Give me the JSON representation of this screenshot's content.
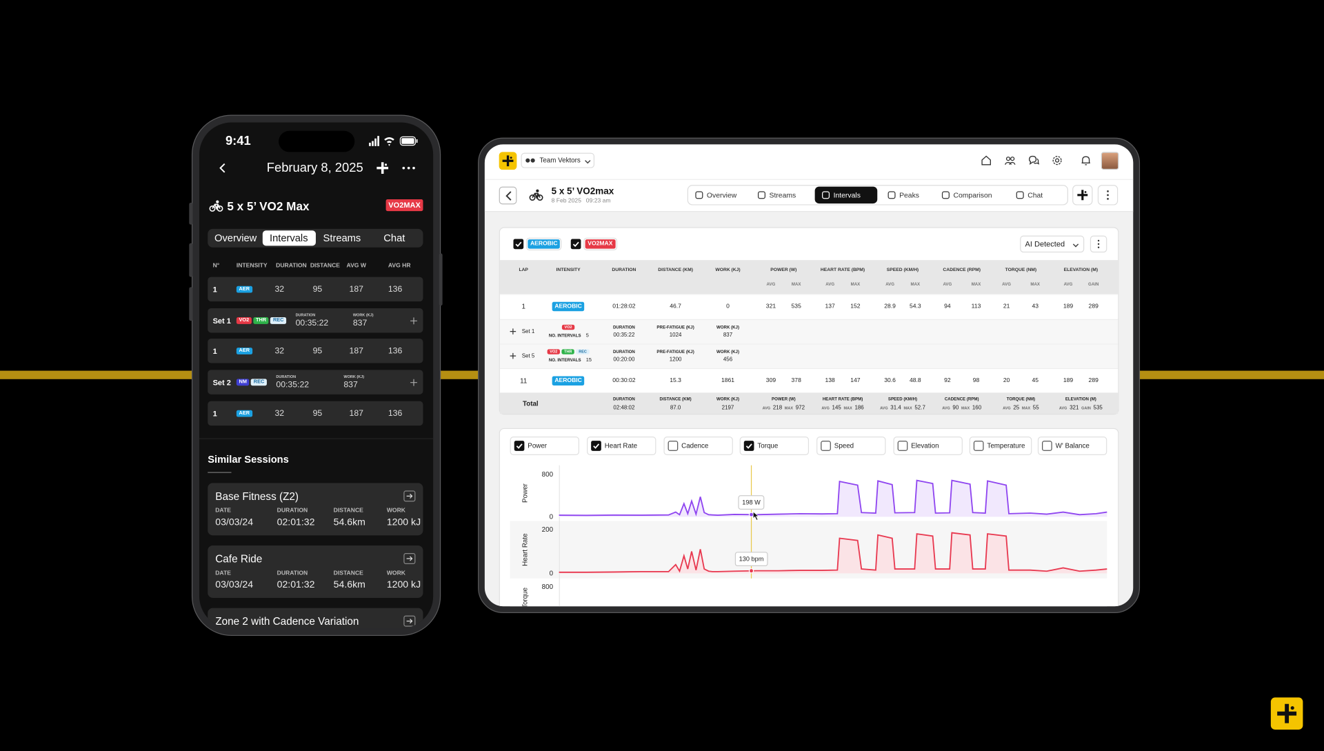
{
  "phone": {
    "status_time": "9:41",
    "date": "February 8, 2025",
    "session": {
      "title": "5 x 5’ VO2 Max",
      "tag": "VO2MAX"
    },
    "tabs": [
      "Overview",
      "Intervals",
      "Streams",
      "Chat"
    ],
    "active_tab": 1,
    "table": {
      "headers": [
        "N°",
        "INTENSITY",
        "DURATION",
        "DISTANCE",
        "AVG W",
        "AVG HR"
      ],
      "rows": [
        {
          "n": 1,
          "tags": [
            {
              "label": "AER",
              "color": "#1ba1e2"
            }
          ],
          "cells": [
            32,
            95,
            187,
            136
          ]
        },
        {
          "n": "Set 1",
          "tags": [
            {
              "label": "VO2",
              "color": "#e63946"
            },
            {
              "label": "THR",
              "color": "#2fb34a"
            },
            {
              "label": "REC",
              "color": "#dff0fa",
              "text_color": "#1f6fa3"
            }
          ],
          "duration_label": "DURATION",
          "duration": "00:35:22",
          "work_label": "WORK (KJ)",
          "work": 837
        },
        {
          "n": 1,
          "tags": [
            {
              "label": "AER",
              "color": "#1ba1e2"
            }
          ],
          "cells": [
            32,
            95,
            187,
            136
          ]
        },
        {
          "n": "Set 2",
          "tags": [
            {
              "label": "NM",
              "color": "#3f3fd1"
            },
            {
              "label": "REC",
              "color": "#dff0fa",
              "text_color": "#1f6fa3"
            }
          ],
          "duration_label": "DURATION",
          "duration": "00:35:22",
          "work_label": "WORK (KJ)",
          "work": 837
        },
        {
          "n": 1,
          "tags": [
            {
              "label": "AER",
              "color": "#1ba1e2"
            }
          ],
          "cells": [
            32,
            95,
            187,
            136
          ]
        }
      ]
    },
    "similar": {
      "title": "Similar Sessions",
      "labels": [
        "DATE",
        "DURATION",
        "DISTANCE",
        "WORK"
      ],
      "sessions": [
        {
          "name": "Base Fitness (Z2)",
          "values": [
            "03/03/24",
            "02:01:32",
            "54.6km",
            "1200 kJ"
          ]
        },
        {
          "name": "Cafe Ride",
          "values": [
            "03/03/24",
            "02:01:32",
            "54.6km",
            "1200 kJ"
          ]
        },
        {
          "name": "Zone 2 with Cadence Variation"
        }
      ]
    }
  },
  "tablet": {
    "team": "Team Vektors",
    "session": {
      "title": "5 x 5’ VO2max",
      "date": "8 Feb 2025",
      "time": "09:23 am"
    },
    "tabs": [
      "Overview",
      "Streams",
      "Intervals",
      "Peaks",
      "Comparison",
      "Chat"
    ],
    "active_tab": 2,
    "filters": [
      {
        "label": "AEROBIC",
        "color": "#1ba1e2"
      },
      {
        "label": "VO2MAX",
        "color": "#e63946"
      }
    ],
    "detection": "AI Detected",
    "laps": {
      "columns": [
        {
          "label": "LAP"
        },
        {
          "label": "INTENSITY"
        },
        {
          "label": "DURATION"
        },
        {
          "label": "DISTANCE (KM)"
        },
        {
          "label": "WORK (KJ)"
        },
        {
          "label": "POWER (W)",
          "sub": [
            "AVG",
            "MAX"
          ]
        },
        {
          "label": "HEART RATE (BPM)",
          "sub": [
            "AVG",
            "MAX"
          ]
        },
        {
          "label": "SPEED (KM/H)",
          "sub": [
            "AVG",
            "MAX"
          ]
        },
        {
          "label": "CADENCE (RPM)",
          "sub": [
            "AVG",
            "MAX"
          ]
        },
        {
          "label": "TORQUE (NM)",
          "sub": [
            "AVG",
            "MAX"
          ]
        },
        {
          "label": "ELEVATION (M)",
          "sub": [
            "AVG",
            "GAIN"
          ]
        }
      ],
      "rows": [
        {
          "lap": 1,
          "intensity": {
            "label": "AEROBIC",
            "color": "#1ba1e2"
          },
          "duration": "01:28:02",
          "distance": 46.7,
          "work": 0,
          "stats": [
            [
              321,
              535
            ],
            [
              137,
              152
            ],
            [
              28.9,
              54.3
            ],
            [
              94,
              113
            ],
            [
              21,
              43
            ],
            [
              189,
              289
            ]
          ]
        },
        {
          "set": "Set 1",
          "tags": [
            {
              "label": "VO2",
              "color": "#e63946"
            }
          ],
          "intervals_label": "NO. INTERVALS",
          "intervals": 5,
          "fields": [
            {
              "label": "DURATION",
              "value": "00:35:22"
            },
            {
              "label": "PRE-FATIGUE (KJ)",
              "value": 1024
            },
            {
              "label": "WORK (KJ)",
              "value": 837
            }
          ]
        },
        {
          "set": "Set 5",
          "tags": [
            {
              "label": "VO2",
              "color": "#e63946"
            },
            {
              "label": "THR",
              "color": "#2fb34a"
            },
            {
              "label": "REC",
              "color": "#dff0fa",
              "text_color": "#1f6fa3"
            }
          ],
          "intervals_label": "NO. INTERVALS",
          "intervals": 15,
          "fields": [
            {
              "label": "DURATION",
              "value": "00:20:00"
            },
            {
              "label": "PRE-FATIGUE (KJ)",
              "value": 1200
            },
            {
              "label": "WORK (KJ)",
              "value": 456
            }
          ]
        },
        {
          "lap": 11,
          "intensity": {
            "label": "AEROBIC",
            "color": "#1ba1e2"
          },
          "duration": "00:30:02",
          "distance": 15.3,
          "work": 1861,
          "stats": [
            [
              309,
              378
            ],
            [
              138,
              147
            ],
            [
              30.6,
              48.8
            ],
            [
              92,
              98
            ],
            [
              20,
              45
            ],
            [
              189,
              289
            ]
          ]
        }
      ],
      "total": {
        "label": "Total",
        "fields": [
          {
            "label": "DURATION",
            "value": "02:48:02"
          },
          {
            "label": "DISTANCE (KM)",
            "value": "87.0"
          },
          {
            "label": "WORK (KJ)",
            "value": 2197
          }
        ],
        "stats": [
          [
            218,
            972
          ],
          [
            145,
            186
          ],
          [
            31.4,
            52.7
          ],
          [
            90,
            160
          ],
          [
            25,
            55
          ],
          [
            321,
            535
          ]
        ]
      }
    },
    "streams": [
      {
        "label": "Power",
        "checked": true
      },
      {
        "label": "Heart Rate",
        "checked": true
      },
      {
        "label": "Cadence",
        "checked": false
      },
      {
        "label": "Torque",
        "checked": true
      },
      {
        "label": "Speed",
        "checked": false
      },
      {
        "label": "Elevation",
        "checked": false
      },
      {
        "label": "Temperature",
        "checked": false
      },
      {
        "label": "W' Balance",
        "checked": false
      }
    ]
  },
  "chart_data": [
    {
      "type": "line",
      "x": [
        0,
        5,
        10,
        15,
        20,
        21.3,
        22,
        22.8,
        23.5,
        24.2,
        25,
        25.8,
        26.5,
        27.3,
        28,
        29,
        32,
        36,
        40,
        44,
        48,
        50.8,
        51.2,
        54.5,
        55.2,
        57.8,
        58.2,
        60.8,
        61.3,
        64.9,
        65.3,
        68.2,
        68.7,
        71.3,
        71.7,
        75,
        75.5,
        77.8,
        78.2,
        81.6,
        82.1,
        86,
        89,
        92,
        95,
        98,
        100
      ],
      "series": [
        {
          "name": "Power",
          "color": "#8f45f0",
          "fill": "#f1e8fd",
          "values": [
            30,
            28,
            32,
            30,
            35,
            90,
            40,
            250,
            60,
            300,
            50,
            380,
            80,
            40,
            35,
            30,
            45,
            40,
            50,
            60,
            55,
            60,
            670,
            600,
            80,
            70,
            680,
            610,
            75,
            80,
            690,
            630,
            70,
            75,
            690,
            620,
            80,
            70,
            680,
            600,
            60,
            70,
            50,
            90,
            40,
            60,
            90
          ]
        }
      ],
      "xlim": [
        0,
        100
      ],
      "ylim": [
        0,
        800
      ],
      "yticks": [
        0,
        800
      ],
      "annotation": {
        "x": 35.1,
        "label": "198 W"
      }
    },
    {
      "type": "line",
      "x": [
        0,
        5,
        10,
        15,
        20,
        21.3,
        22,
        22.8,
        23.5,
        24.2,
        25,
        25.8,
        26.5,
        27.3,
        28,
        29,
        32,
        36,
        40,
        44,
        48,
        50.8,
        51.2,
        54.5,
        55.2,
        57.8,
        58.2,
        60.8,
        61.3,
        64.9,
        65.3,
        68.2,
        68.7,
        71.3,
        71.7,
        75,
        75.5,
        77.8,
        78.2,
        81.6,
        82.1,
        86,
        89,
        92,
        95,
        98,
        100
      ],
      "series": [
        {
          "name": "Heart Rate",
          "color": "#e8384f",
          "fill": "#fbe3e6",
          "values": [
            5,
            5,
            6,
            8,
            8,
            40,
            10,
            80,
            20,
            100,
            15,
            110,
            20,
            10,
            8,
            8,
            10,
            12,
            12,
            14,
            14,
            15,
            160,
            150,
            20,
            15,
            175,
            160,
            20,
            20,
            180,
            170,
            20,
            20,
            185,
            175,
            20,
            20,
            180,
            170,
            15,
            15,
            10,
            25,
            10,
            15,
            20
          ]
        }
      ],
      "xlim": [
        0,
        100
      ],
      "ylim": [
        0,
        200
      ],
      "yticks": [
        0,
        200
      ],
      "annotation": {
        "x": 35.1,
        "label": "130 bpm"
      }
    },
    {
      "type": "line",
      "series": [
        {
          "name": "Torque",
          "color": "#19b3d9"
        }
      ],
      "xlim": [
        0,
        100
      ],
      "ylim": [
        0,
        800
      ],
      "yticks": [
        800
      ]
    }
  ]
}
